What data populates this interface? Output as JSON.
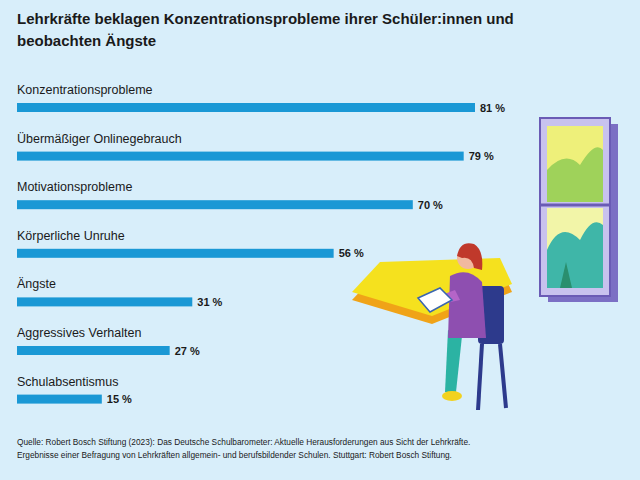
{
  "chart_data": {
    "type": "bar",
    "orientation": "horizontal",
    "title": "Lehrkräfte beklagen Konzentrationsprobleme ihrer Schüler:innen und beobachten Ängste",
    "categories": [
      "Konzentrationsprobleme",
      "Übermäßiger Onlinegebrauch",
      "Motivationsprobleme",
      "Körperliche Unruhe",
      "Ängste",
      "Aggressives Verhalten",
      "Schulabsentismus"
    ],
    "values": [
      81,
      79,
      70,
      56,
      31,
      27,
      15
    ],
    "value_labels": [
      "81 %",
      "79 %",
      "70 %",
      "56 %",
      "31 %",
      "27 %",
      "15 %"
    ],
    "color": "#1a98d5",
    "data_labels": true,
    "tick_labels": false,
    "grid": false,
    "source": [
      "Quelle: Robert Bosch Stiftung (2023): Das Deutsche Schulbarometer: Aktuelle Herausforderungen aus Sicht der Lehrkräfte.",
      "Ergebnisse einer Befragung von Lehrkräften allgemein- und berufsbildender Schulen. Stuttgart: Robert Bosch Stiftung."
    ]
  }
}
